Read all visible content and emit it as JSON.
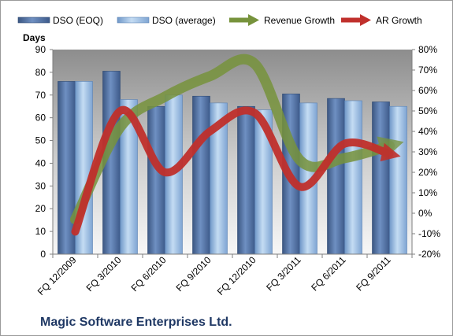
{
  "chart_data": {
    "type": "bar",
    "footer_title": "Magic Software Enterprises Ltd.",
    "ylabel": "Days",
    "ylim": [
      0,
      90
    ],
    "y_ticks": [
      0,
      10,
      20,
      30,
      40,
      50,
      60,
      70,
      80,
      90
    ],
    "y2lim": [
      -20,
      80
    ],
    "y2_ticks": [
      "-20%",
      "-10%",
      "0%",
      "10%",
      "20%",
      "30%",
      "40%",
      "50%",
      "60%",
      "70%",
      "80%"
    ],
    "categories": [
      "FQ 12/2009",
      "FQ 3/2010",
      "FQ 6/2010",
      "FQ 9/2010",
      "FQ 12/2010",
      "FQ 3/2011",
      "FQ 6/2011",
      "FQ 9/2011"
    ],
    "series": [
      {
        "name": "DSO (EOQ)",
        "type": "bar",
        "axis": "left",
        "values": [
          76,
          80.5,
          65,
          69.5,
          65,
          70.5,
          68.5,
          67
        ],
        "color": "#4f6fa0"
      },
      {
        "name": "DSO (average)",
        "type": "bar",
        "axis": "left",
        "values": [
          76,
          68,
          70,
          66.5,
          63.5,
          66.5,
          67.5,
          65
        ],
        "color": "#92b4dc"
      },
      {
        "name": "Revenue Growth",
        "type": "line",
        "axis": "right",
        "values": [
          -3,
          42,
          57,
          67,
          73,
          26,
          27,
          33
        ],
        "color": "#77933c"
      },
      {
        "name": "AR Growth",
        "type": "line",
        "axis": "right",
        "values": [
          -9,
          50,
          20,
          40,
          49,
          13,
          34,
          29
        ],
        "color": "#c0302c"
      }
    ],
    "grid": false,
    "legend_position": "top"
  }
}
